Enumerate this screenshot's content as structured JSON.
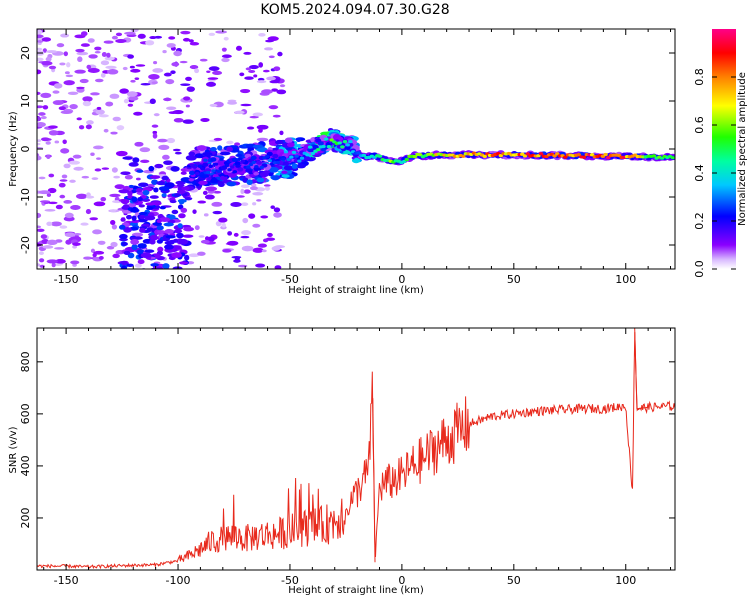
{
  "figure_title": "KOM5.2024.094.07.30.G28",
  "chart_data": [
    {
      "type": "heatmap",
      "title": "",
      "xlabel": "Height of straight line (km)",
      "ylabel": "Frequency (Hz)",
      "xlim": [
        -163,
        122
      ],
      "ylim": [
        -25,
        25
      ],
      "xticks": [
        "-150",
        "-100",
        "-50",
        "0",
        "50",
        "100"
      ],
      "yticks": [
        "-20",
        "-10",
        "0",
        "10",
        "20"
      ],
      "xtick_values": [
        -150,
        -100,
        -50,
        0,
        50,
        100
      ],
      "ytick_values": [
        -20,
        -10,
        0,
        10,
        20
      ],
      "colormap": "hsv_r",
      "colorbar": {
        "label": "Normalized spectral amplitude",
        "ticks": [
          "0.0",
          "0.2",
          "0.4",
          "0.6",
          "0.8"
        ],
        "tick_values": [
          0.0,
          0.2,
          0.4,
          0.6,
          0.8
        ],
        "range": [
          0,
          1
        ]
      },
      "ridge_track": {
        "height_km": [
          -95,
          -85,
          -75,
          -65,
          -55,
          -45,
          -38,
          -32,
          -28,
          -22,
          -20,
          -18,
          -12,
          -5,
          0,
          5,
          20,
          50,
          80,
          100,
          110,
          122
        ],
        "frequency_hz": [
          -4,
          -3.5,
          -3.5,
          -3,
          -2,
          -1.5,
          0.5,
          2,
          1.5,
          0.8,
          -1,
          -1.5,
          -1.5,
          -2.5,
          -2.5,
          -1.5,
          -1.2,
          -1.2,
          -1.4,
          -1.5,
          -1.6,
          -1.8
        ],
        "amplitude": [
          0.2,
          0.25,
          0.2,
          0.25,
          0.3,
          0.35,
          0.45,
          0.55,
          0.5,
          0.35,
          0.3,
          0.4,
          0.45,
          0.6,
          0.5,
          0.6,
          0.75,
          0.85,
          0.9,
          0.9,
          0.6,
          0.55
        ]
      }
    },
    {
      "type": "line",
      "title": "",
      "xlabel": "Height of straight line (km)",
      "ylabel": "SNR (v/v)",
      "xlim": [
        -163,
        122
      ],
      "ylim": [
        0,
        930
      ],
      "xticks": [
        "-150",
        "-100",
        "-50",
        "0",
        "50",
        "100"
      ],
      "yticks": [
        "200",
        "400",
        "600",
        "800"
      ],
      "xtick_values": [
        -150,
        -100,
        -50,
        0,
        50,
        100
      ],
      "ytick_values": [
        200,
        400,
        600,
        800
      ],
      "series": [
        {
          "color": "#e8291c",
          "x": [
            -163,
            -150,
            -140,
            -130,
            -120,
            -110,
            -105,
            -100,
            -95,
            -90,
            -85,
            -80,
            -75,
            -70,
            -65,
            -60,
            -55,
            -50,
            -45,
            -40,
            -35,
            -30,
            -25,
            -20,
            -15,
            -13,
            -12,
            -10,
            -5,
            0,
            5,
            10,
            15,
            20,
            25,
            30,
            40,
            50,
            60,
            70,
            80,
            90,
            100,
            103,
            104,
            105,
            110,
            122
          ],
          "y": [
            15,
            15,
            12,
            15,
            18,
            20,
            28,
            35,
            55,
            80,
            110,
            120,
            130,
            120,
            130,
            135,
            140,
            150,
            160,
            165,
            170,
            190,
            240,
            300,
            380,
            660,
            30,
            320,
            340,
            360,
            400,
            430,
            470,
            500,
            530,
            560,
            590,
            600,
            610,
            615,
            620,
            620,
            630,
            300,
            930,
            620,
            625,
            630
          ]
        }
      ]
    }
  ]
}
